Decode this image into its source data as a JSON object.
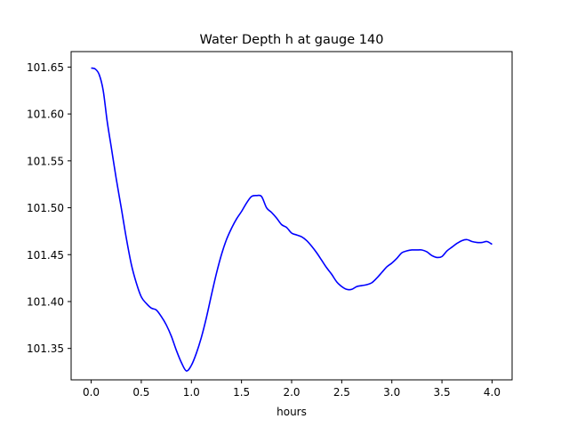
{
  "chart_data": {
    "type": "line",
    "title": "Water Depth h at gauge 140",
    "xlabel": "hours",
    "ylabel": "",
    "xlim": [
      -0.2,
      4.2
    ],
    "ylim": [
      101.3165,
      101.6665
    ],
    "xticks": [
      0.0,
      0.5,
      1.0,
      1.5,
      2.0,
      2.5,
      3.0,
      3.5,
      4.0
    ],
    "xtick_labels": [
      "0.0",
      "0.5",
      "1.0",
      "1.5",
      "2.0",
      "2.5",
      "3.0",
      "3.5",
      "4.0"
    ],
    "yticks": [
      101.35,
      101.4,
      101.45,
      101.5,
      101.55,
      101.6,
      101.65
    ],
    "ytick_labels": [
      "101.35",
      "101.40",
      "101.45",
      "101.50",
      "101.55",
      "101.60",
      "101.65"
    ],
    "grid": false,
    "series": [
      {
        "color": "#0000ff",
        "x": [
          0.0,
          0.04,
          0.08,
          0.12,
          0.16,
          0.2,
          0.25,
          0.3,
          0.35,
          0.4,
          0.45,
          0.5,
          0.55,
          0.6,
          0.65,
          0.7,
          0.75,
          0.8,
          0.85,
          0.9,
          0.95,
          1.0,
          1.05,
          1.1,
          1.15,
          1.2,
          1.25,
          1.3,
          1.35,
          1.4,
          1.45,
          1.5,
          1.55,
          1.6,
          1.65,
          1.7,
          1.75,
          1.8,
          1.85,
          1.9,
          1.95,
          2.0,
          2.05,
          2.1,
          2.15,
          2.2,
          2.25,
          2.3,
          2.35,
          2.4,
          2.45,
          2.5,
          2.55,
          2.6,
          2.65,
          2.7,
          2.75,
          2.8,
          2.85,
          2.9,
          2.95,
          3.0,
          3.05,
          3.1,
          3.15,
          3.2,
          3.25,
          3.3,
          3.35,
          3.4,
          3.45,
          3.5,
          3.55,
          3.6,
          3.65,
          3.7,
          3.75,
          3.8,
          3.85,
          3.9,
          3.95,
          4.0
        ],
        "y": [
          101.649,
          101.648,
          101.642,
          101.625,
          101.592,
          101.565,
          101.531,
          101.5,
          101.468,
          101.44,
          101.42,
          101.405,
          101.398,
          101.393,
          101.391,
          101.384,
          101.375,
          101.363,
          101.348,
          101.335,
          101.326,
          101.332,
          101.345,
          101.362,
          101.383,
          101.407,
          101.43,
          101.45,
          101.466,
          101.478,
          101.488,
          101.496,
          101.505,
          101.512,
          101.513,
          101.512,
          101.5,
          101.495,
          101.489,
          101.482,
          101.479,
          101.473,
          101.471,
          101.469,
          101.465,
          101.459,
          101.452,
          101.444,
          101.436,
          101.429,
          101.421,
          101.416,
          101.413,
          101.413,
          101.416,
          101.417,
          101.418,
          101.42,
          101.425,
          101.431,
          101.437,
          101.441,
          101.446,
          101.452,
          101.454,
          101.455,
          101.455,
          101.455,
          101.453,
          101.449,
          101.447,
          101.448,
          101.454,
          101.458,
          101.462,
          101.465,
          101.466,
          101.464,
          101.463,
          101.463,
          101.464,
          101.461
        ]
      }
    ]
  }
}
